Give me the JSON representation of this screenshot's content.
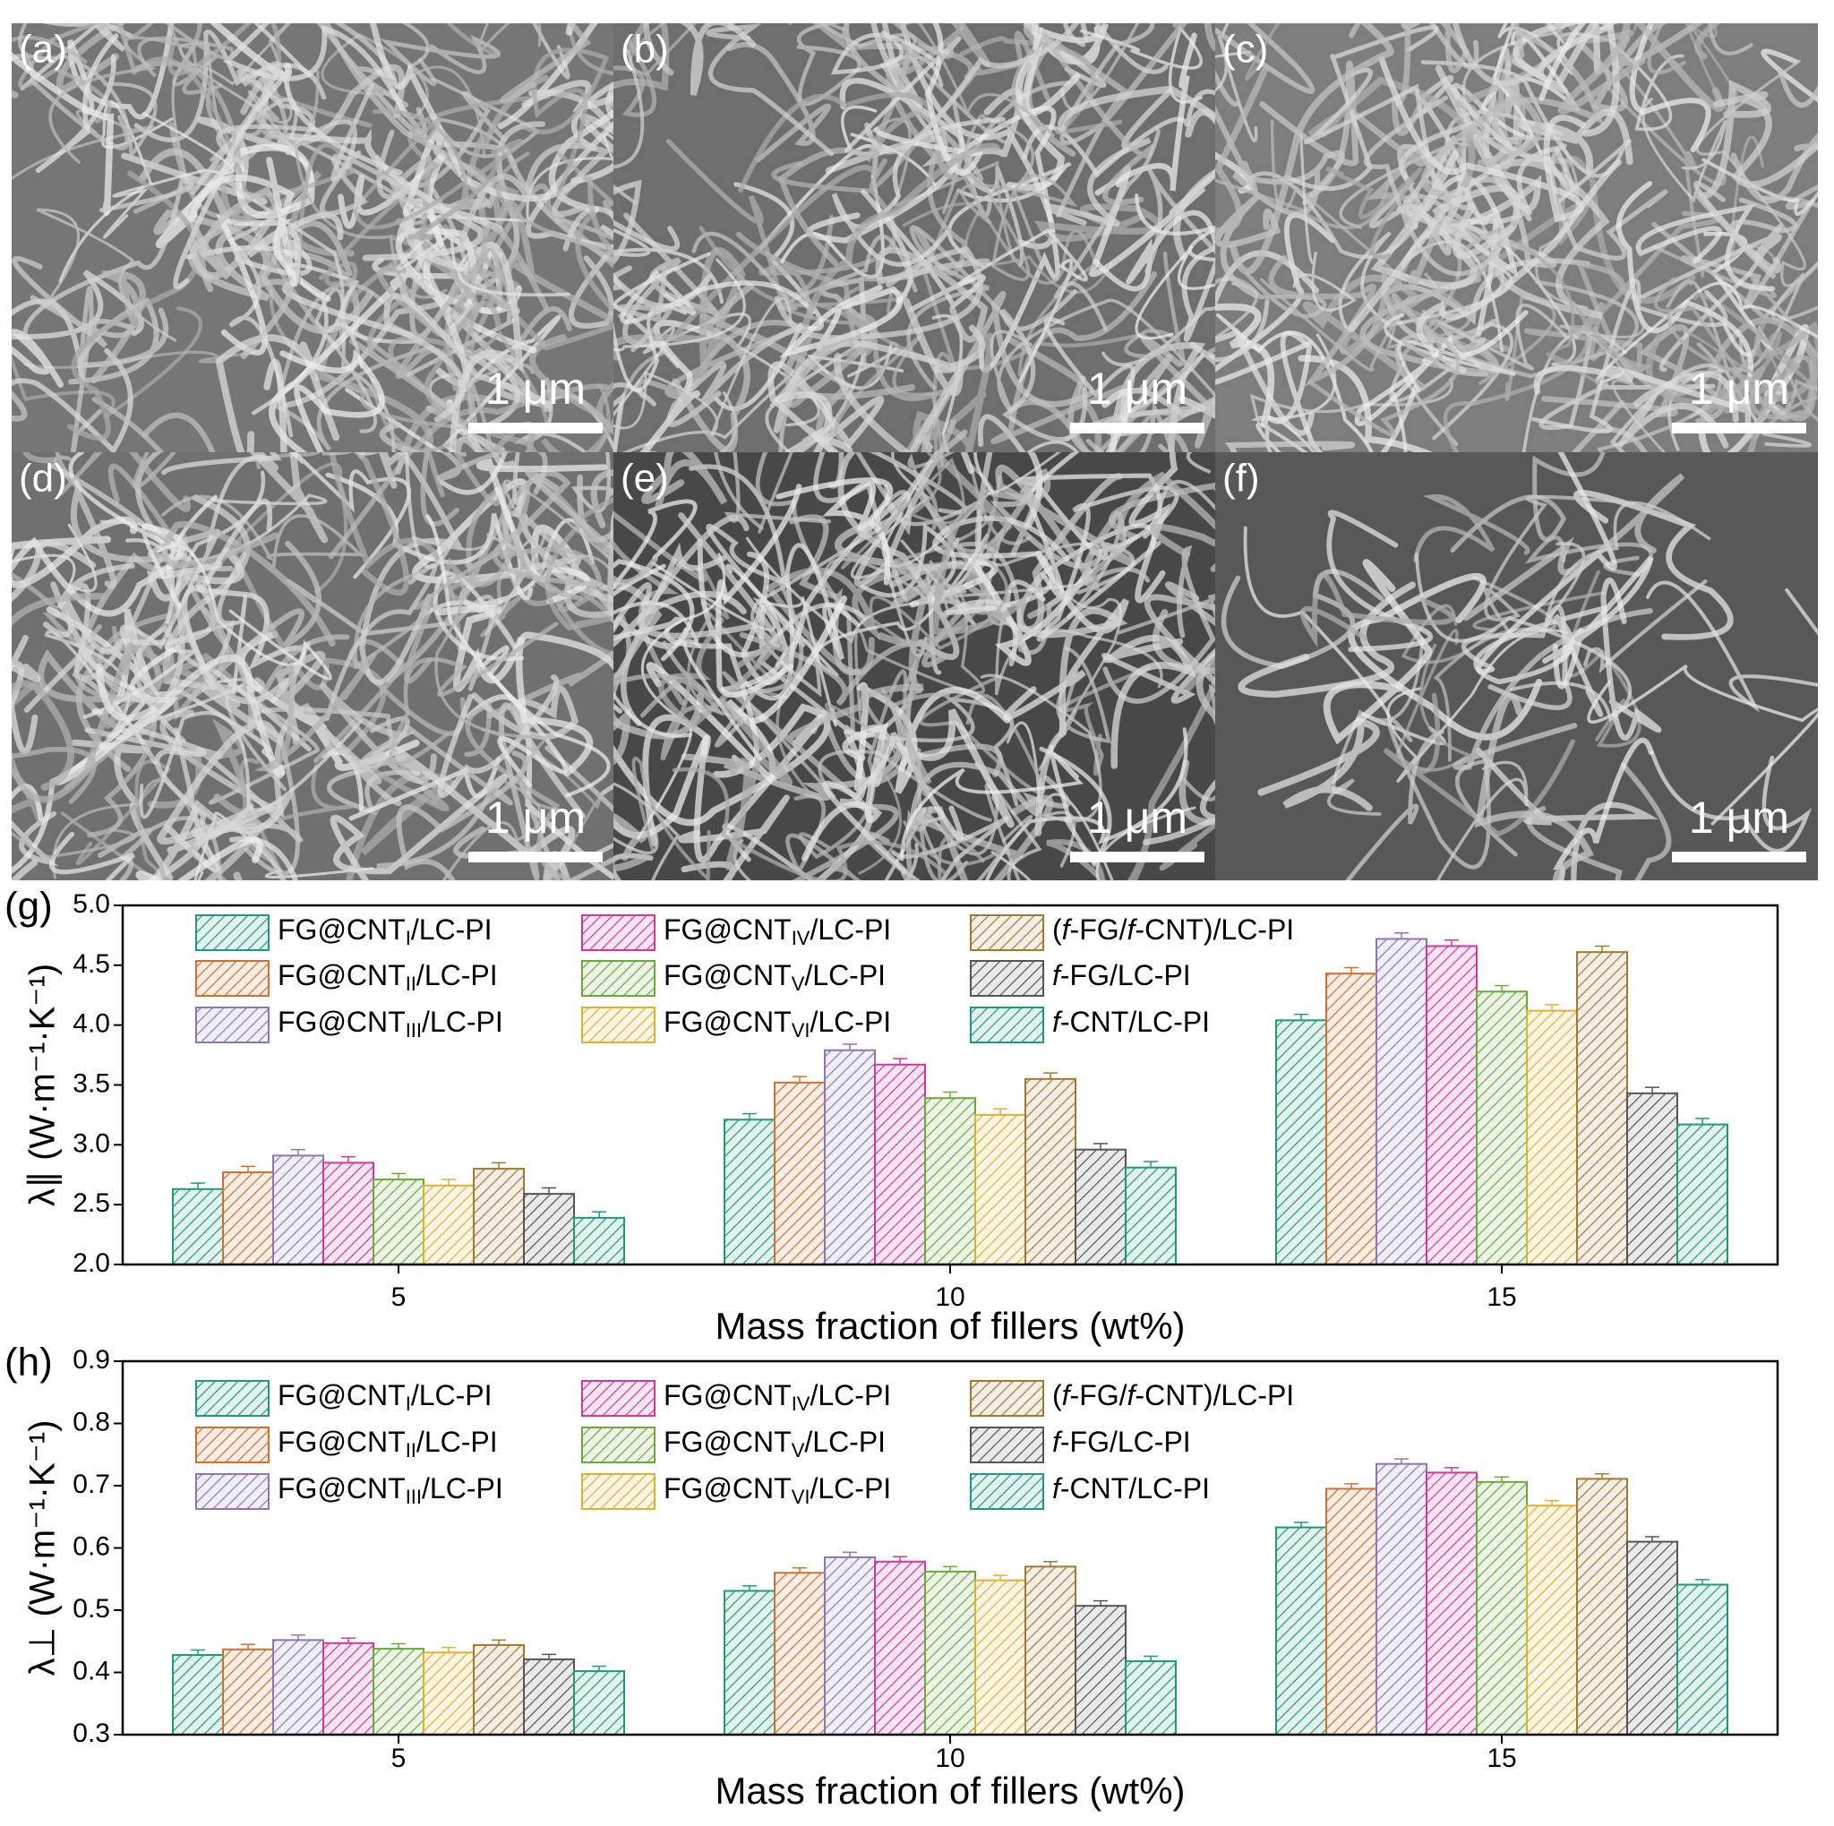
{
  "panels": [
    {
      "label": "(a)",
      "scale": "1 μm"
    },
    {
      "label": "(b)",
      "scale": "1 μm"
    },
    {
      "label": "(c)",
      "scale": "1 μm"
    },
    {
      "label": "(d)",
      "scale": "1 μm"
    },
    {
      "label": "(e)",
      "scale": "1 μm"
    },
    {
      "label": "(f)",
      "scale": "1 μm"
    }
  ],
  "chart_data": [
    {
      "type": "bar",
      "panel_label": "(g)",
      "x_label": "Mass fraction of fillers (wt%)",
      "y_label": "λ∥ (W·m⁻¹·K⁻¹)",
      "categories": [
        "5",
        "10",
        "15"
      ],
      "ylim": [
        2,
        5
      ],
      "yticks": [
        {
          "value": 2,
          "label": "2.0"
        },
        2.5,
        {
          "value": 3,
          "label": "3.0"
        },
        3.5,
        {
          "value": 4,
          "label": "4.0"
        },
        4.5,
        {
          "value": 5,
          "label": "5.0"
        }
      ],
      "series": [
        {
          "name": "FG@CNTI/LC-PI",
          "color": "#1f9a78",
          "values": [
            2.63,
            3.21,
            4.04
          ],
          "errors": [
            0.05,
            0.05,
            0.05
          ]
        },
        {
          "name": "FG@CNTII/LC-PI",
          "color": "#d0702a",
          "values": [
            2.77,
            3.52,
            4.43
          ],
          "errors": [
            0.05,
            0.05,
            0.05
          ]
        },
        {
          "name": "FG@CNTIII/LC-PI",
          "color": "#8878b8",
          "values": [
            2.91,
            3.79,
            4.72
          ],
          "errors": [
            0.05,
            0.05,
            0.05
          ]
        },
        {
          "name": "FG@CNTIV/LC-PI",
          "color": "#d6359a",
          "values": [
            2.85,
            3.67,
            4.66
          ],
          "errors": [
            0.05,
            0.05,
            0.05
          ]
        },
        {
          "name": "FG@CNTV/LC-PI",
          "color": "#6aaa3a",
          "values": [
            2.71,
            3.39,
            4.28
          ],
          "errors": [
            0.05,
            0.05,
            0.05
          ]
        },
        {
          "name": "FG@CNTVI/LC-PI",
          "color": "#e0b030",
          "values": [
            2.66,
            3.25,
            4.12
          ],
          "errors": [
            0.05,
            0.05,
            0.05
          ]
        },
        {
          "name": "(f-FG/f-CNT)/LC-PI",
          "color": "#a07a30",
          "values": [
            2.8,
            3.55,
            4.61
          ],
          "errors": [
            0.05,
            0.05,
            0.05
          ]
        },
        {
          "name": "f-FG/LC-PI",
          "color": "#555555",
          "values": [
            2.59,
            2.96,
            3.43
          ],
          "errors": [
            0.05,
            0.05,
            0.05
          ]
        },
        {
          "name": "f-CNT/LC-PI",
          "color": "#1f9a78",
          "values": [
            2.39,
            2.81,
            3.17
          ],
          "errors": [
            0.05,
            0.05,
            0.05
          ]
        }
      ]
    },
    {
      "type": "bar",
      "panel_label": "(h)",
      "x_label": "Mass fraction of fillers (wt%)",
      "y_label": "λ⊥ (W·m⁻¹·K⁻¹)",
      "categories": [
        "5",
        "10",
        "15"
      ],
      "ylim": [
        0.3,
        0.9
      ],
      "yticks": [
        0.3,
        0.4,
        0.5,
        0.6,
        0.7,
        0.8,
        0.9
      ],
      "series": [
        {
          "name": "FG@CNTI/LC-PI",
          "color": "#1f9a78",
          "values": [
            0.428,
            0.531,
            0.633
          ],
          "errors": [
            0.008,
            0.008,
            0.008
          ]
        },
        {
          "name": "FG@CNTII/LC-PI",
          "color": "#d0702a",
          "values": [
            0.437,
            0.56,
            0.695
          ],
          "errors": [
            0.008,
            0.008,
            0.008
          ]
        },
        {
          "name": "FG@CNTIII/LC-PI",
          "color": "#8878b8",
          "values": [
            0.452,
            0.585,
            0.735
          ],
          "errors": [
            0.008,
            0.008,
            0.008
          ]
        },
        {
          "name": "FG@CNTIV/LC-PI",
          "color": "#d6359a",
          "values": [
            0.447,
            0.578,
            0.721
          ],
          "errors": [
            0.008,
            0.008,
            0.008
          ]
        },
        {
          "name": "FG@CNTV/LC-PI",
          "color": "#6aaa3a",
          "values": [
            0.438,
            0.562,
            0.706
          ],
          "errors": [
            0.008,
            0.008,
            0.008
          ]
        },
        {
          "name": "FG@CNTVI/LC-PI",
          "color": "#e0b030",
          "values": [
            0.432,
            0.548,
            0.668
          ],
          "errors": [
            0.008,
            0.008,
            0.008
          ]
        },
        {
          "name": "(f-FG/f-CNT)/LC-PI",
          "color": "#a07a30",
          "values": [
            0.444,
            0.57,
            0.711
          ],
          "errors": [
            0.008,
            0.008,
            0.008
          ]
        },
        {
          "name": "f-FG/LC-PI",
          "color": "#555555",
          "values": [
            0.421,
            0.507,
            0.61
          ],
          "errors": [
            0.008,
            0.008,
            0.008
          ]
        },
        {
          "name": "f-CNT/LC-PI",
          "color": "#1f9a78",
          "values": [
            0.402,
            0.418,
            0.541
          ],
          "errors": [
            0.008,
            0.008,
            0.008
          ]
        }
      ]
    }
  ]
}
